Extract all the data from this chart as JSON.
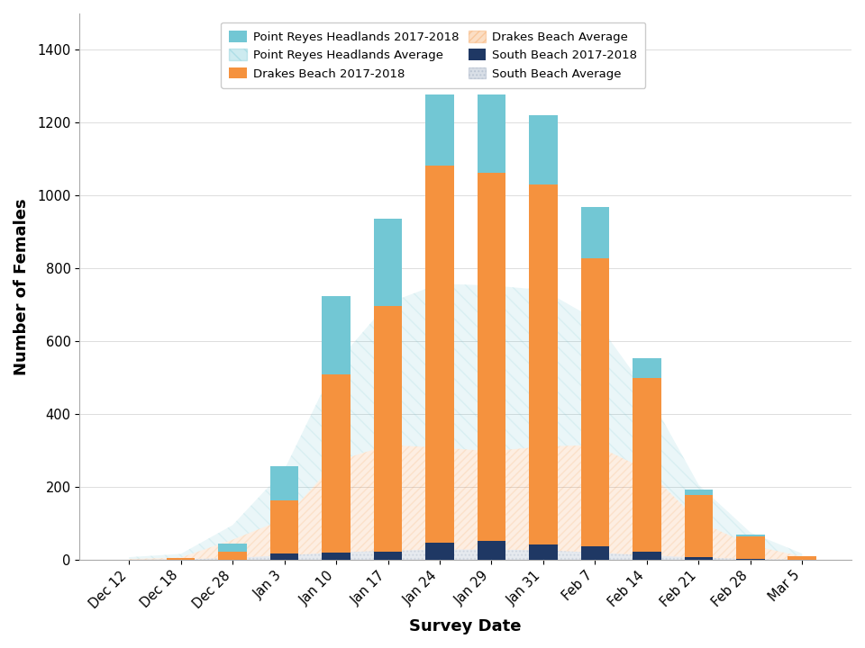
{
  "survey_dates": [
    "Dec 12",
    "Dec 18",
    "Dec 28",
    "Jan 3",
    "Jan 10",
    "Jan 17",
    "Jan 24",
    "Jan 29",
    "Jan 31",
    "Feb 7",
    "Feb 14",
    "Feb 21",
    "Feb 28",
    "Mar 5"
  ],
  "headlands_2017": [
    0,
    0,
    22,
    95,
    215,
    240,
    195,
    215,
    190,
    140,
    55,
    15,
    5,
    0
  ],
  "drakes_2017": [
    0,
    5,
    22,
    145,
    490,
    675,
    1035,
    1010,
    988,
    790,
    477,
    170,
    62,
    10
  ],
  "south_2017": [
    0,
    0,
    0,
    18,
    20,
    22,
    48,
    52,
    42,
    38,
    22,
    8,
    2,
    0
  ],
  "headlands_avg": [
    5,
    10,
    40,
    135,
    270,
    390,
    450,
    455,
    430,
    345,
    215,
    100,
    35,
    8
  ],
  "drakes_avg": [
    2,
    5,
    50,
    100,
    250,
    290,
    280,
    270,
    285,
    295,
    235,
    100,
    38,
    8
  ],
  "south_avg": [
    0,
    1,
    5,
    12,
    20,
    25,
    28,
    28,
    26,
    20,
    12,
    6,
    2,
    1
  ],
  "color_headlands": "#72c7d4",
  "color_drakes": "#f5923e",
  "color_south": "#1f3864",
  "color_headlands_avg": "#72c7d4",
  "color_drakes_avg": "#f5923e",
  "color_south_avg": "#8496b0",
  "xlabel": "Survey Date",
  "ylabel": "Number of Females",
  "ylim": [
    0,
    1500
  ],
  "yticks": [
    0,
    200,
    400,
    600,
    800,
    1000,
    1200,
    1400
  ],
  "legend_labels_bar": [
    "Point Reyes Headlands 2017-2018",
    "Drakes Beach 2017-2018",
    "South Beach 2017-2018"
  ],
  "legend_labels_area": [
    "Point Reyes Headlands Average",
    "Drakes Beach Average",
    "South Beach Average"
  ]
}
